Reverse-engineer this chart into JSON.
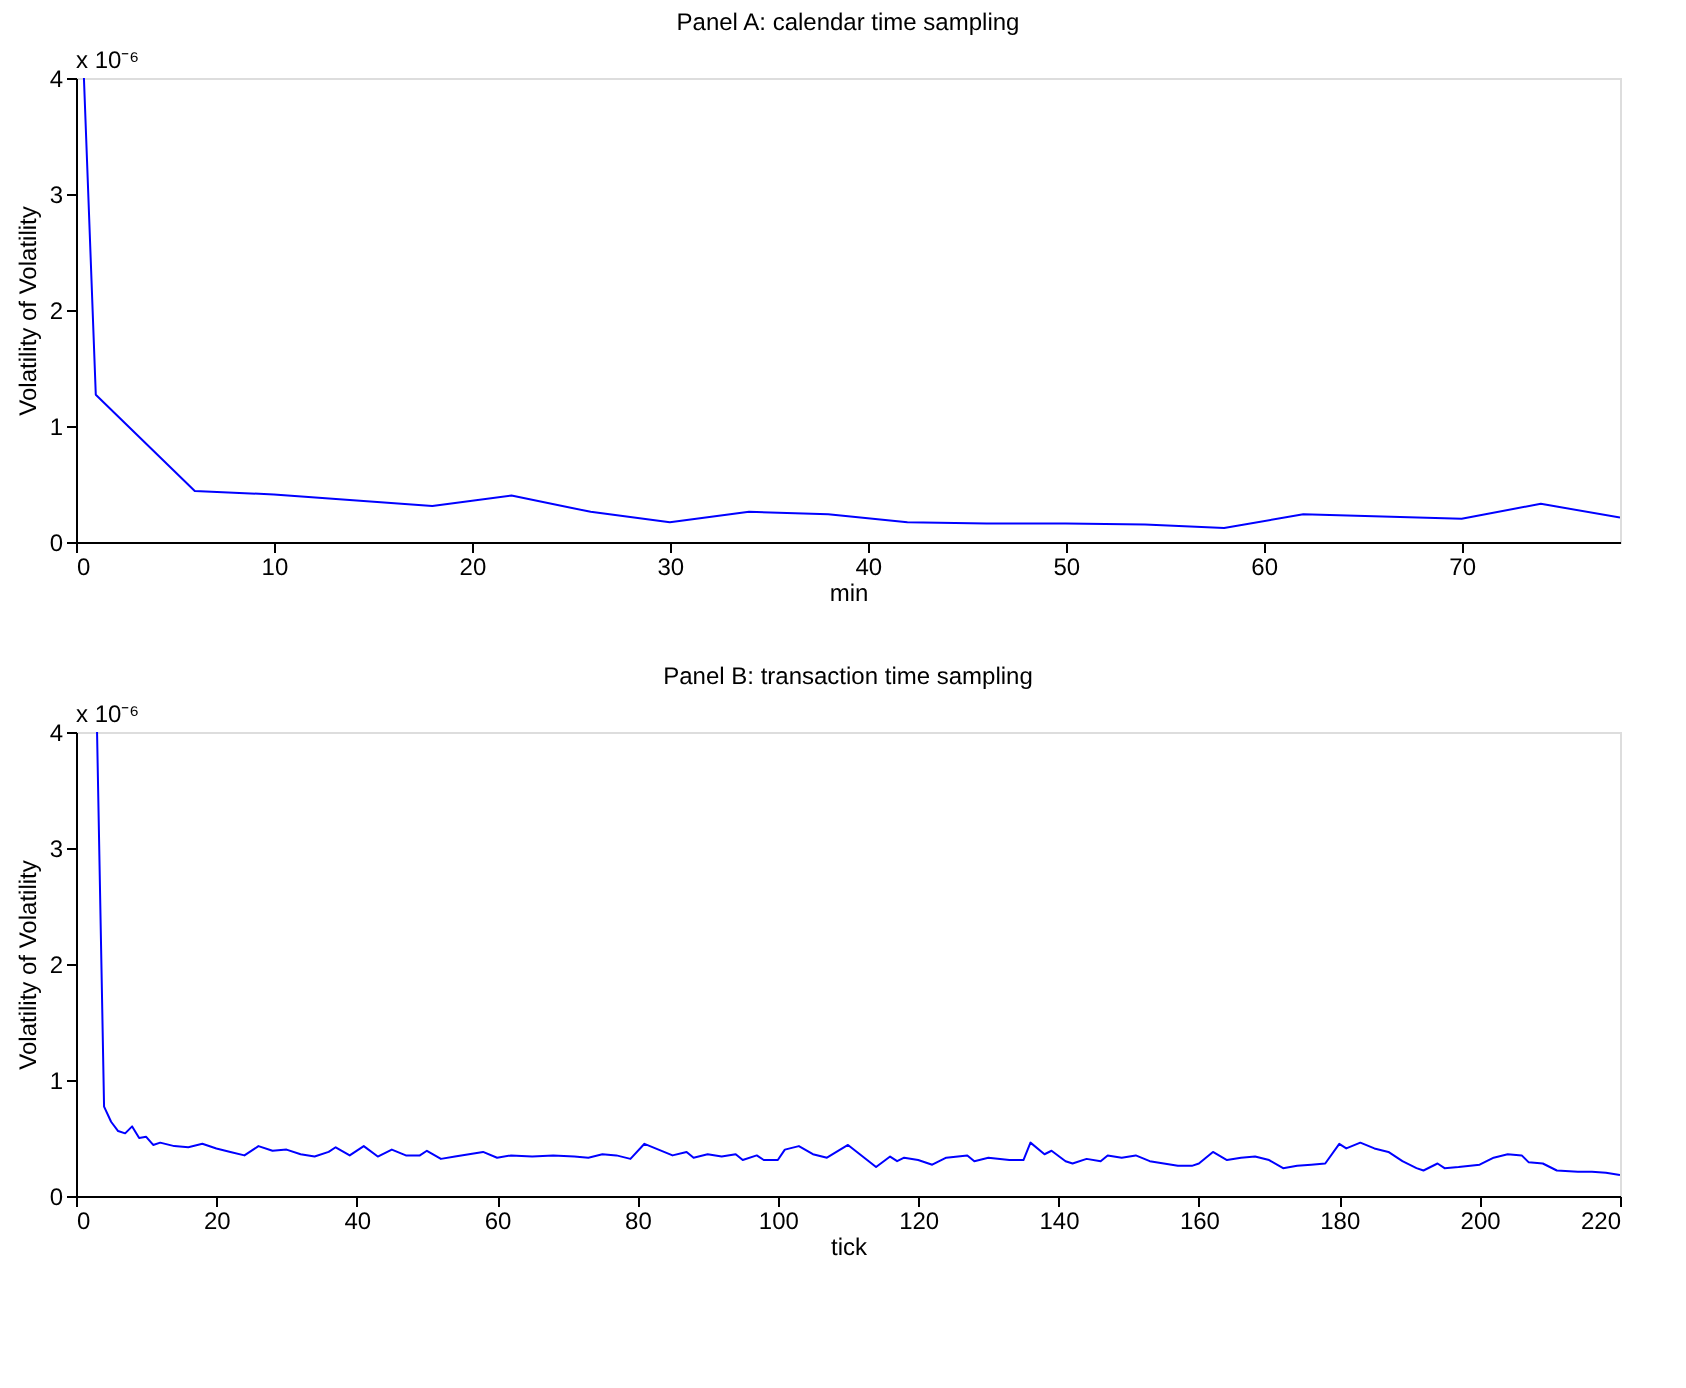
{
  "chart_data": [
    {
      "type": "line",
      "title": "Panel A: calendar time sampling",
      "xlabel": "min",
      "ylabel": "Volatility of Volatility",
      "annotations": [
        "x 10⁻⁶"
      ],
      "xlim": [
        0,
        78
      ],
      "ylim": [
        0,
        4
      ],
      "xticks": [
        0,
        10,
        20,
        30,
        40,
        50,
        60,
        70
      ],
      "yticks": [
        0,
        1,
        2,
        3,
        4
      ],
      "series": [
        {
          "color": "#0000ff",
          "x": [
            0.4,
            1,
            6,
            10,
            14,
            18,
            22,
            26,
            30,
            34,
            38,
            42,
            46,
            50,
            54,
            58,
            62,
            66,
            70,
            74,
            78
          ],
          "values": [
            4,
            1.27,
            0.44,
            0.41,
            0.36,
            0.31,
            0.4,
            0.26,
            0.17,
            0.26,
            0.24,
            0.17,
            0.16,
            0.16,
            0.15,
            0.12,
            0.24,
            0.22,
            0.2,
            0.33,
            0.21
          ]
        }
      ]
    },
    {
      "type": "line",
      "title": "Panel B: transaction time sampling",
      "xlabel": "tick",
      "ylabel": "Volatility of Volatility",
      "annotations": [
        "x 10⁻⁶"
      ],
      "xlim": [
        0,
        220
      ],
      "ylim": [
        0,
        4
      ],
      "xticks": [
        0,
        20,
        40,
        60,
        80,
        100,
        120,
        140,
        160,
        180,
        200,
        220
      ],
      "yticks": [
        0,
        1,
        2,
        3,
        4
      ],
      "series": [
        {
          "color": "#0000ff",
          "x": [
            3,
            4,
            5,
            6,
            7,
            8,
            9,
            10,
            11,
            12,
            14,
            16,
            18,
            20,
            22,
            24,
            26,
            28,
            30,
            32,
            34,
            36,
            37,
            39,
            41,
            43,
            45,
            47,
            49,
            50,
            52,
            54,
            56,
            58,
            60,
            62,
            65,
            68,
            71,
            73,
            75,
            77,
            79,
            81,
            83,
            85,
            87,
            88,
            90,
            92,
            94,
            95,
            97,
            98,
            100,
            101,
            103,
            105,
            107,
            110,
            114,
            116,
            117,
            118,
            120,
            122,
            124,
            127,
            128,
            130,
            133,
            135,
            136,
            138,
            139,
            141,
            142,
            144,
            146,
            147,
            149,
            151,
            153,
            155,
            157,
            159,
            160,
            162,
            164,
            166,
            168,
            170,
            172,
            174,
            176,
            178,
            180,
            181,
            183,
            185,
            187,
            189,
            191,
            192,
            194,
            195,
            197,
            200,
            202,
            204,
            206,
            207,
            209,
            211,
            214,
            216,
            218,
            220
          ],
          "values": [
            4,
            0.77,
            0.64,
            0.56,
            0.54,
            0.6,
            0.5,
            0.51,
            0.44,
            0.46,
            0.43,
            0.42,
            0.45,
            0.41,
            0.38,
            0.35,
            0.43,
            0.39,
            0.4,
            0.36,
            0.34,
            0.38,
            0.42,
            0.35,
            0.43,
            0.34,
            0.4,
            0.35,
            0.35,
            0.39,
            0.32,
            0.34,
            0.36,
            0.38,
            0.33,
            0.35,
            0.34,
            0.35,
            0.34,
            0.33,
            0.36,
            0.35,
            0.32,
            0.45,
            0.4,
            0.35,
            0.38,
            0.33,
            0.36,
            0.34,
            0.36,
            0.31,
            0.35,
            0.31,
            0.31,
            0.4,
            0.43,
            0.36,
            0.33,
            0.44,
            0.25,
            0.34,
            0.3,
            0.33,
            0.31,
            0.27,
            0.33,
            0.35,
            0.3,
            0.33,
            0.31,
            0.31,
            0.46,
            0.36,
            0.39,
            0.3,
            0.28,
            0.32,
            0.3,
            0.35,
            0.33,
            0.35,
            0.3,
            0.28,
            0.26,
            0.26,
            0.28,
            0.38,
            0.31,
            0.33,
            0.34,
            0.31,
            0.24,
            0.26,
            0.27,
            0.28,
            0.45,
            0.41,
            0.46,
            0.41,
            0.38,
            0.3,
            0.24,
            0.22,
            0.28,
            0.24,
            0.25,
            0.27,
            0.33,
            0.36,
            0.35,
            0.29,
            0.28,
            0.22,
            0.21,
            0.21,
            0.2,
            0.18
          ]
        }
      ]
    }
  ]
}
